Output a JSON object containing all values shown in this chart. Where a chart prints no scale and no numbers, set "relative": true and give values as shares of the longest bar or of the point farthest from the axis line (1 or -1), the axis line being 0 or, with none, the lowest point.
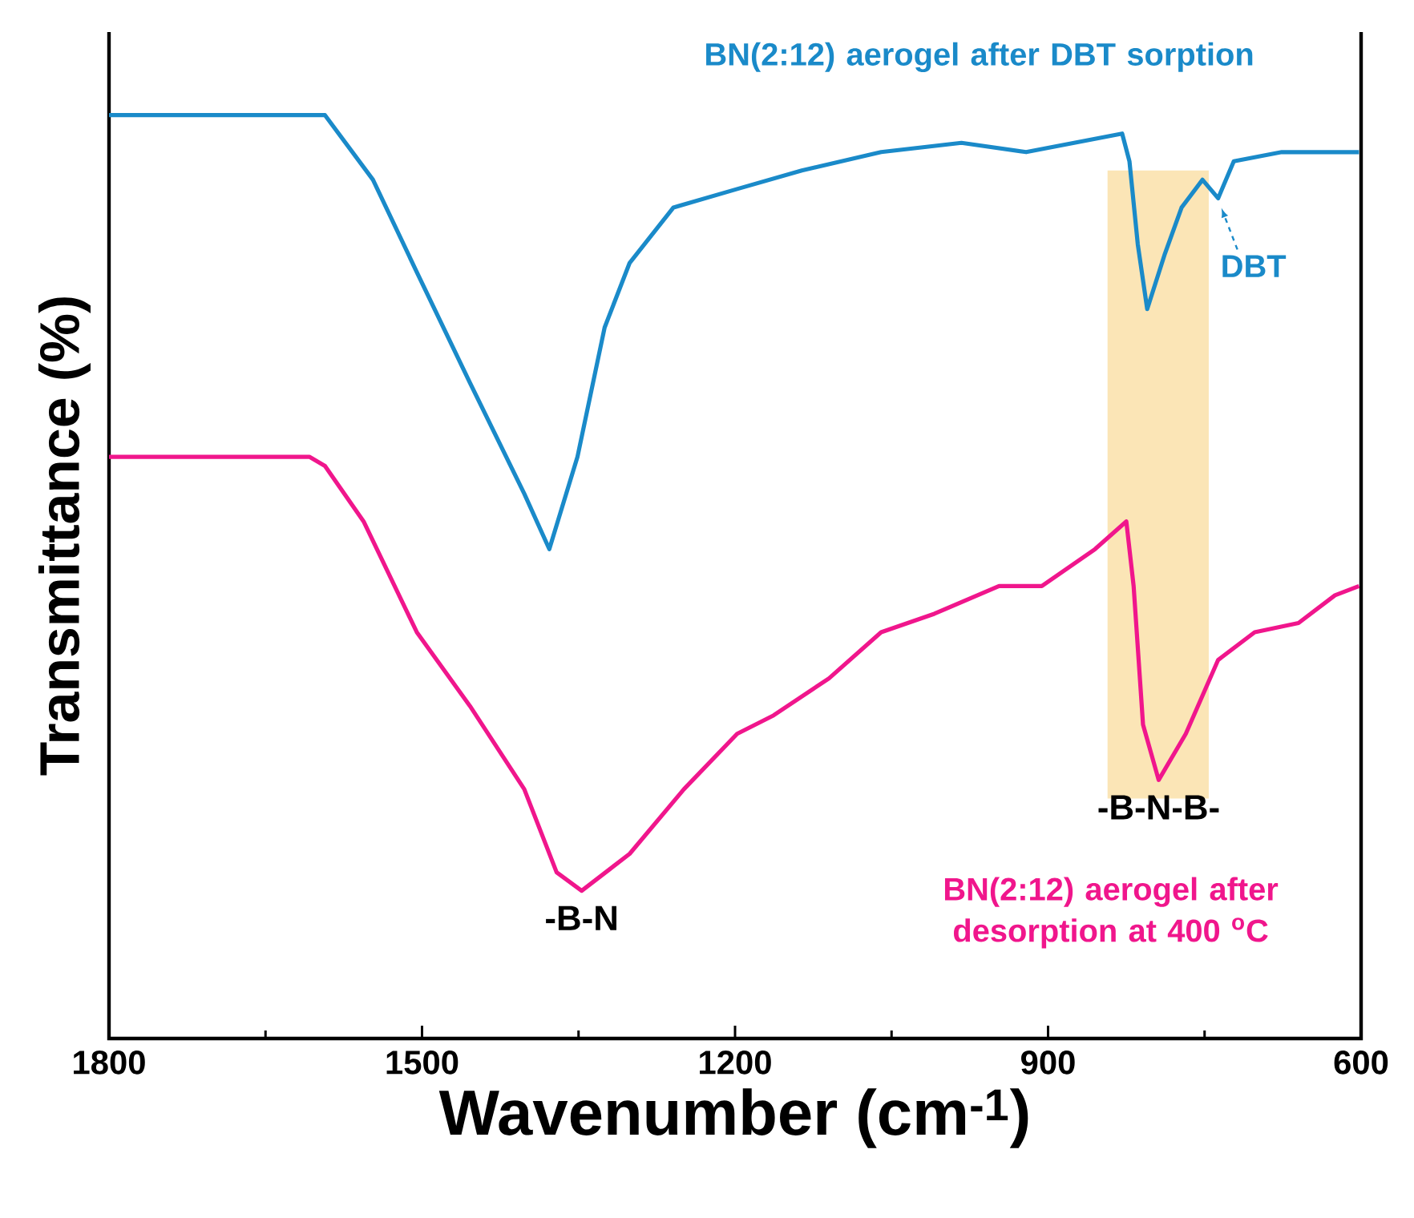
{
  "chart_data": {
    "type": "line",
    "relative": true,
    "xlabel": "Wavenumber (cm$^{-1}$)",
    "ylabel": "Transmittance (%)",
    "xlim": [
      1800,
      600
    ],
    "xticks": [
      1800,
      1500,
      1200,
      900,
      600
    ],
    "series": [
      {
        "name": "BN(2:12) aerogel after DBT sorption",
        "color": "#1a8ac9",
        "x": [
          1800,
          1593,
          1547,
          1505,
          1454,
          1402,
          1378,
          1351,
          1325,
          1301,
          1259,
          1198,
          1136,
          1060,
          983,
          921,
          829,
          822,
          814,
          805,
          788,
          772,
          752,
          737,
          722,
          676,
          602
        ],
        "values": [
          1.0,
          1.0,
          0.93,
          0.83,
          0.71,
          0.59,
          0.53,
          0.63,
          0.77,
          0.84,
          0.9,
          0.92,
          0.94,
          0.96,
          0.97,
          0.96,
          0.98,
          0.95,
          0.86,
          0.79,
          0.85,
          0.9,
          0.93,
          0.91,
          0.95,
          0.96,
          0.96
        ]
      },
      {
        "name": "BN(2:12) aerogel after desorption at 400 $^{o}$C",
        "color": "#f0168c",
        "x": [
          1800,
          1746,
          1685,
          1608,
          1593,
          1556,
          1505,
          1454,
          1402,
          1371,
          1347,
          1301,
          1249,
          1198,
          1163,
          1110,
          1060,
          1009,
          947,
          906,
          855,
          825,
          818,
          809,
          794,
          768,
          737,
          702,
          660,
          625,
          602
        ],
        "values": [
          0.63,
          0.63,
          0.63,
          0.63,
          0.62,
          0.56,
          0.44,
          0.36,
          0.27,
          0.18,
          0.16,
          0.2,
          0.27,
          0.33,
          0.35,
          0.39,
          0.44,
          0.46,
          0.49,
          0.49,
          0.53,
          0.56,
          0.49,
          0.34,
          0.28,
          0.33,
          0.41,
          0.44,
          0.45,
          0.48,
          0.49
        ]
      }
    ],
    "bands": [
      {
        "axis": "x",
        "from": 843,
        "to": 746,
        "color": "#fbe5b6"
      }
    ],
    "annotations": [
      {
        "text": "-B-N",
        "x": 1347,
        "y": 0.16
      },
      {
        "text": "-B-N-B-",
        "x": 794,
        "y": 0.28
      },
      {
        "text": "DBT",
        "x": 737,
        "y": 0.91
      }
    ],
    "grid": false,
    "marker": "none",
    "line_style": "solid"
  }
}
